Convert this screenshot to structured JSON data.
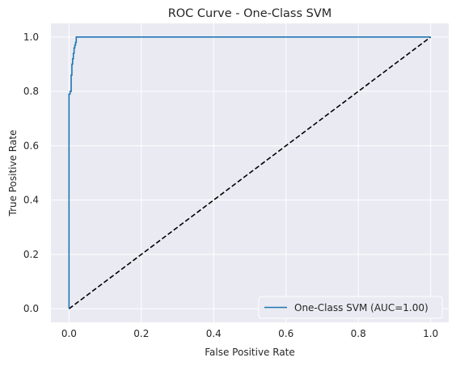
{
  "chart_data": {
    "type": "line",
    "title": "ROC Curve - One-Class SVM",
    "xlabel": "False Positive Rate",
    "ylabel": "True Positive Rate",
    "xlim": [
      -0.05,
      1.05
    ],
    "ylim": [
      -0.05,
      1.05
    ],
    "xticks": [
      0.0,
      0.2,
      0.4,
      0.6,
      0.8,
      1.0
    ],
    "yticks": [
      0.0,
      0.2,
      0.4,
      0.6,
      0.8,
      1.0
    ],
    "xtick_labels": [
      "0.0",
      "0.2",
      "0.4",
      "0.6",
      "0.8",
      "1.0"
    ],
    "ytick_labels": [
      "0.0",
      "0.2",
      "0.4",
      "0.6",
      "0.8",
      "1.0"
    ],
    "grid": true,
    "legend_position": "lower-right",
    "series": [
      {
        "name": "One-Class SVM (AUC=1.00)",
        "color": "#1f77b4",
        "style": "solid",
        "x": [
          0.0,
          0.0,
          0.0,
          0.003,
          0.003,
          0.006,
          0.006,
          0.008,
          0.008,
          0.01,
          0.01,
          0.012,
          0.012,
          0.014,
          0.014,
          0.016,
          0.016,
          0.018,
          0.018,
          0.02,
          0.02,
          1.0
        ],
        "y": [
          0.0,
          0.0,
          0.79,
          0.79,
          0.8,
          0.8,
          0.86,
          0.86,
          0.9,
          0.9,
          0.92,
          0.92,
          0.94,
          0.94,
          0.96,
          0.96,
          0.97,
          0.97,
          0.98,
          0.98,
          1.0,
          1.0
        ]
      },
      {
        "name": "",
        "color": "#000000",
        "style": "dashed",
        "x": [
          0.0,
          1.0
        ],
        "y": [
          0.0,
          1.0
        ]
      }
    ]
  }
}
